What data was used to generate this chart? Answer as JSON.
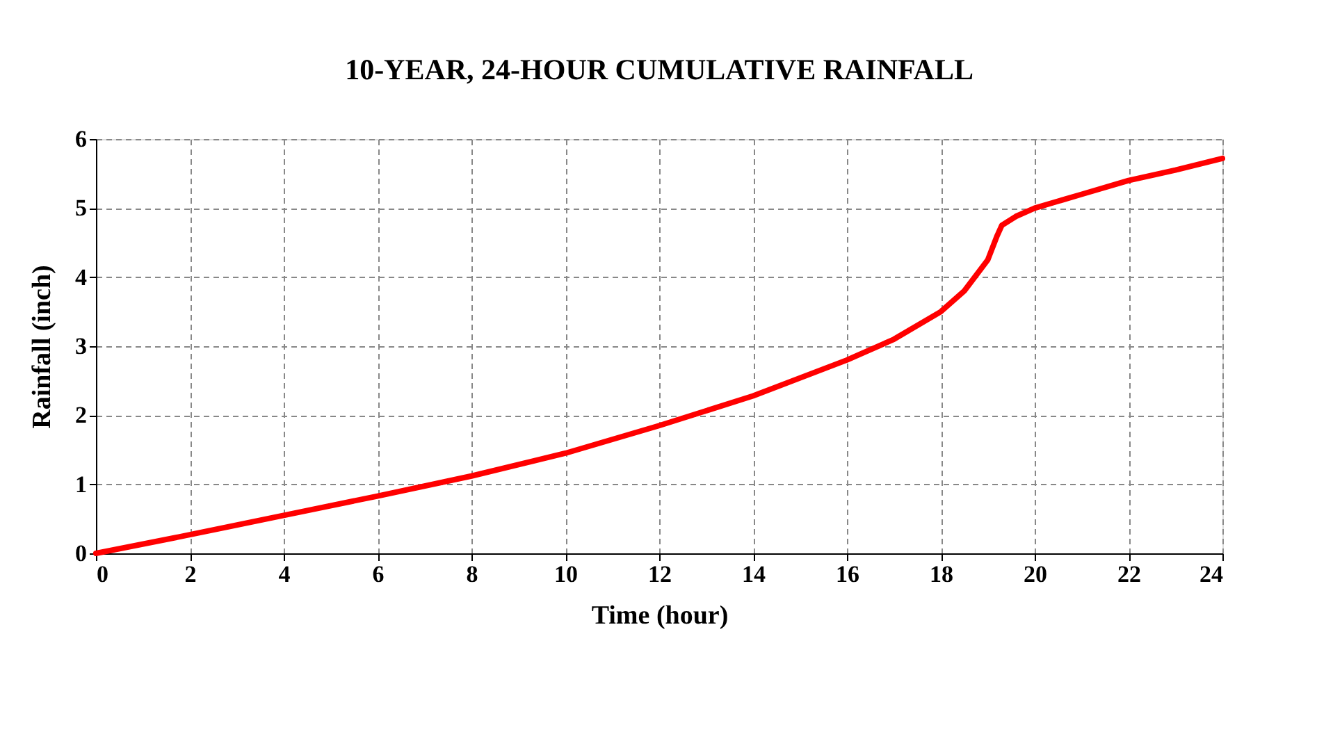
{
  "chart_data": {
    "type": "line",
    "title": "10-YEAR, 24-HOUR CUMULATIVE RAINFALL",
    "xlabel": "Time (hour)",
    "ylabel": "Rainfall (inch)",
    "x": [
      0,
      2,
      4,
      6,
      8,
      10,
      12,
      14,
      16,
      17,
      18,
      18.5,
      19,
      19.2,
      19.3,
      19.6,
      20,
      21,
      22,
      23,
      24
    ],
    "series": [
      {
        "color": "#ff0000",
        "values": [
          0,
          0.27,
          0.55,
          0.83,
          1.12,
          1.45,
          1.85,
          2.28,
          2.8,
          3.1,
          3.5,
          3.8,
          4.25,
          4.6,
          4.75,
          4.88,
          5.0,
          5.2,
          5.4,
          5.55,
          5.72
        ]
      }
    ],
    "xlim": [
      0,
      24
    ],
    "xticks": [
      0,
      2,
      4,
      6,
      8,
      10,
      12,
      14,
      16,
      18,
      20,
      22,
      24
    ],
    "ylim": [
      0,
      6
    ],
    "yticks": [
      0,
      1,
      2,
      3,
      4,
      5,
      6
    ],
    "grid": true,
    "line_style": "solid",
    "marker": "none"
  }
}
